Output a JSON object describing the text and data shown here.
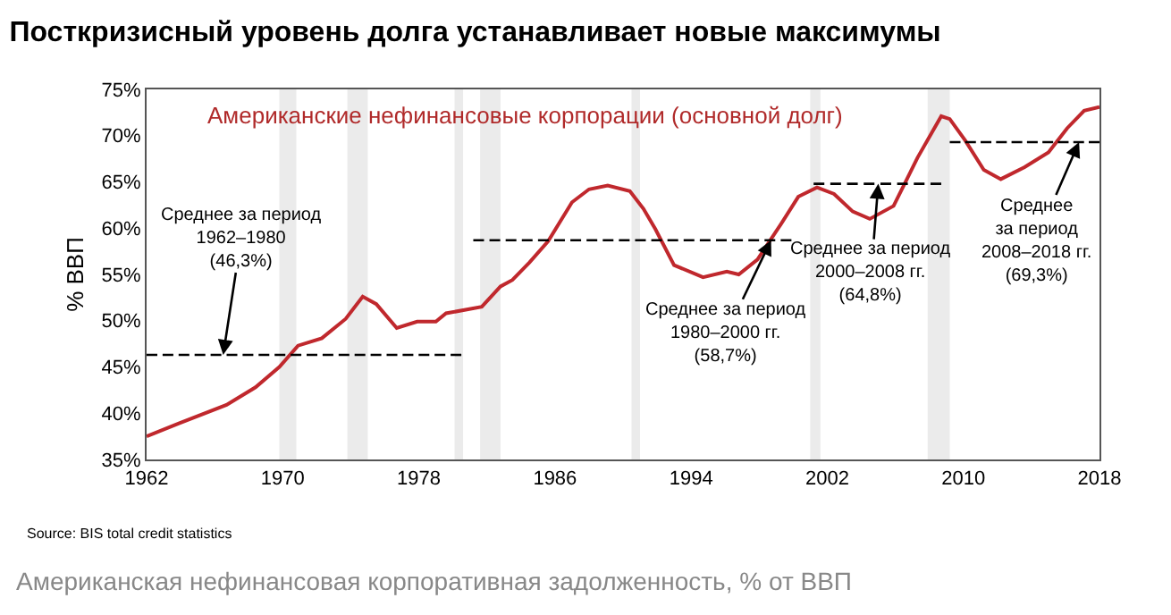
{
  "chart_data": {
    "type": "line",
    "title": "Посткризисный уровень долга устанавливает новые максимумы",
    "ylabel": "% ВВП",
    "xlim": [
      1962,
      2018
    ],
    "xticks": [
      1962,
      1970,
      1978,
      1986,
      1994,
      2002,
      2010,
      2018
    ],
    "ylim": [
      35,
      75
    ],
    "yticks": [
      {
        "value": 35,
        "label": "35%"
      },
      {
        "value": 40,
        "label": "40%"
      },
      {
        "value": 45,
        "label": "45%"
      },
      {
        "value": 50,
        "label": "50%"
      },
      {
        "value": 55,
        "label": "55%"
      },
      {
        "value": 60,
        "label": "60%"
      },
      {
        "value": 65,
        "label": "65%"
      },
      {
        "value": 70,
        "label": "70%"
      },
      {
        "value": 75,
        "label": "75%"
      }
    ],
    "grid": false,
    "marker": "none",
    "series": [
      {
        "color": "#c0282d",
        "line_style": "solid",
        "x": [
          1962,
          1963.9,
          1966.7,
          1968.4,
          1969.8,
          1970.9,
          1972.3,
          1973.7,
          1974.7,
          1975.5,
          1976.7,
          1977.9,
          1979.0,
          1979.6,
          1981.7,
          1982.8,
          1983.5,
          1984.5,
          1985.6,
          1987.0,
          1988.0,
          1989.1,
          1990.4,
          1991.2,
          1991.9,
          1993.0,
          1994.7,
          1996.1,
          1996.8,
          1997.9,
          1999.3,
          2000.3,
          2001.4,
          2002.4,
          2003.5,
          2004.5,
          2005.9,
          2007.3,
          2008.7,
          2009.2,
          2010.1,
          2011.2,
          2012.2,
          2013.6,
          2015.0,
          2016.1,
          2017.1,
          2018.0
        ],
        "values": [
          37.5,
          38.9,
          40.9,
          42.8,
          45.0,
          47.3,
          48.1,
          50.2,
          52.6,
          51.8,
          49.2,
          49.9,
          49.9,
          50.8,
          51.5,
          53.7,
          54.4,
          56.3,
          58.6,
          62.8,
          64.2,
          64.6,
          64.0,
          62.1,
          59.9,
          56.0,
          54.7,
          55.3,
          55.0,
          56.6,
          60.5,
          63.4,
          64.4,
          63.7,
          61.8,
          61.0,
          62.4,
          67.6,
          72.1,
          71.8,
          69.5,
          66.3,
          65.3,
          66.6,
          68.2,
          70.8,
          72.7,
          73.1
        ]
      },
      {
        "color": "#000000",
        "line_style": "dashed",
        "x": [
          1962,
          1980.5
        ],
        "values": [
          46.3,
          46.3
        ]
      },
      {
        "color": "#000000",
        "line_style": "dashed",
        "x": [
          1981.2,
          1999.9
        ],
        "values": [
          58.7,
          58.7
        ]
      },
      {
        "color": "#000000",
        "line_style": "dashed",
        "x": [
          2001.2,
          2008.7
        ],
        "values": [
          64.8,
          64.8
        ]
      },
      {
        "color": "#000000",
        "line_style": "dashed",
        "x": [
          2009.2,
          2018
        ],
        "values": [
          69.3,
          69.3
        ]
      }
    ],
    "bands": [
      {
        "axis": "x",
        "from": 1969.8,
        "to": 1970.8,
        "color": "#ebebeb"
      },
      {
        "axis": "x",
        "from": 1973.8,
        "to": 1975.0,
        "color": "#ebebeb"
      },
      {
        "axis": "x",
        "from": 1980.1,
        "to": 1980.6,
        "color": "#ebebeb"
      },
      {
        "axis": "x",
        "from": 1981.6,
        "to": 1982.8,
        "color": "#ebebeb"
      },
      {
        "axis": "x",
        "from": 1990.5,
        "to": 1991.0,
        "color": "#ebebeb"
      },
      {
        "axis": "x",
        "from": 2001.0,
        "to": 2001.6,
        "color": "#ebebeb"
      },
      {
        "axis": "x",
        "from": 2007.9,
        "to": 2009.2,
        "color": "#ebebeb"
      }
    ],
    "annotations": [
      "Американские нефинансовые корпорации (основной долг)",
      {
        "text": "Среднее за период\n1962–1980\n(46,3%)",
        "x": 1966.5,
        "y": 46.3
      },
      {
        "text": "Среднее за период\n1980–2000 гг.\n(58,7%)",
        "x": 1998.7,
        "y": 58.7
      },
      {
        "text": "Среднее за период\n2000–2008 гг.\n(64,8%)",
        "x": 2005.0,
        "y": 64.8
      },
      {
        "text": "Среднее\nза период\n2008–2018 гг.\n(69,3%)",
        "x": 2016.8,
        "y": 69.3
      },
      "Source: BIS total credit statistics",
      "Американская нефинансовая корпоративная задолженность, % от ВВП"
    ]
  }
}
